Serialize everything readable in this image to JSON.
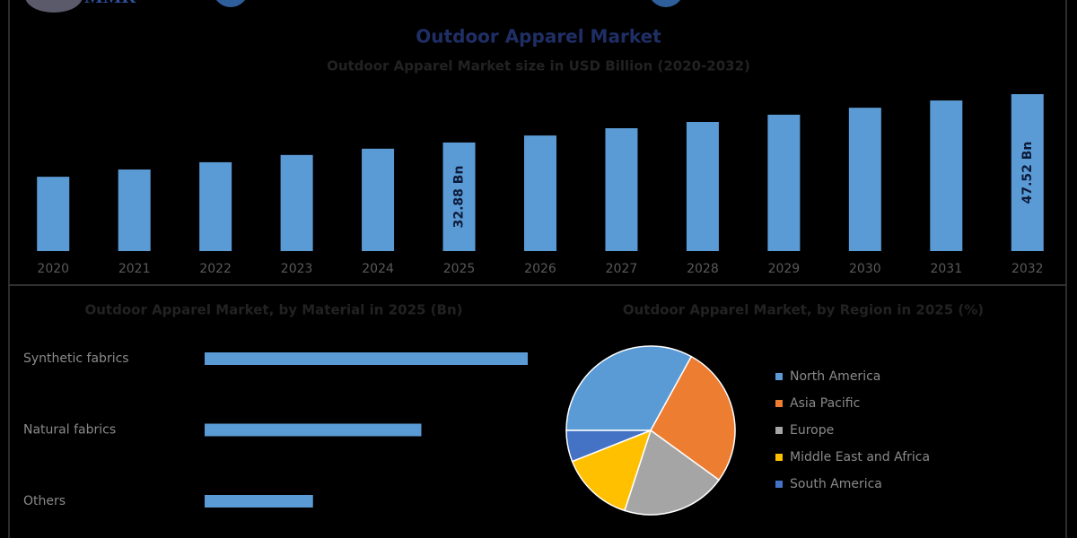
{
  "logo": "MMR",
  "chart_data": [
    {
      "type": "bar",
      "title": "Outdoor Apparel Market",
      "subtitle": "Outdoor Apparel Market size in USD Billion (2020-2032)",
      "categories": [
        "2020",
        "2021",
        "2022",
        "2023",
        "2024",
        "2025",
        "2026",
        "2027",
        "2028",
        "2029",
        "2030",
        "2031",
        "2032"
      ],
      "values": [
        22.5,
        24.7,
        26.9,
        29.1,
        31.0,
        32.88,
        35.0,
        37.2,
        39.1,
        41.3,
        43.4,
        45.6,
        47.52
      ],
      "value_labels": [
        null,
        null,
        null,
        null,
        null,
        "32.88 Bn",
        null,
        null,
        null,
        null,
        null,
        null,
        "47.52 Bn"
      ],
      "color": "#5b9bd5"
    },
    {
      "type": "hbar",
      "title": "Outdoor Apparel Market, by Material in 2025 (Bn)",
      "categories": [
        "Synthetic fabrics",
        "Natural fabrics",
        "Others"
      ],
      "values": [
        16.4,
        11.0,
        5.5
      ],
      "color": "#5b9bd5"
    },
    {
      "type": "pie",
      "title": "Outdoor Apparel Market, by Region in 2025 (%)",
      "categories": [
        "North America",
        "Asia Pacific",
        "Europe",
        "Middle East and Africa",
        "South America"
      ],
      "values": [
        33,
        27,
        20,
        14,
        6
      ],
      "colors": [
        "#5b9bd5",
        "#ed7d31",
        "#a5a5a5",
        "#ffc000",
        "#4472c4"
      ]
    }
  ]
}
